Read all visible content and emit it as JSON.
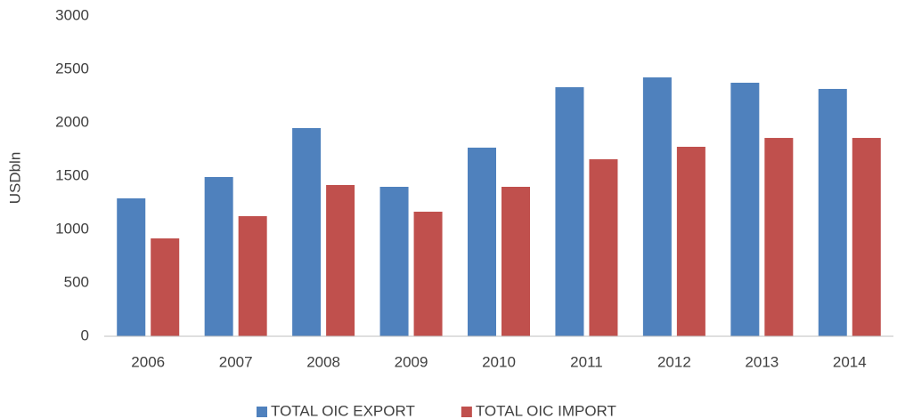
{
  "chart_data": {
    "type": "bar",
    "y_label": "USDbln",
    "categories": [
      "2006",
      "2007",
      "2008",
      "2009",
      "2010",
      "2011",
      "2012",
      "2013",
      "2014"
    ],
    "series": [
      {
        "name": "TOTAL OIC EXPORT",
        "color": "#4f81bd",
        "values": [
          1292,
          1492,
          1950,
          1400,
          1767,
          2333,
          2425,
          2375,
          2317
        ]
      },
      {
        "name": "TOTAL OIC IMPORT",
        "color": "#c0504d",
        "values": [
          917,
          1125,
          1417,
          1167,
          1400,
          1658,
          1775,
          1858,
          1858
        ]
      }
    ],
    "ylim": [
      0,
      3000
    ],
    "yticks": [
      0,
      500,
      1000,
      1500,
      2000,
      2500,
      3000
    ],
    "grid": false,
    "legend": "bottom"
  }
}
